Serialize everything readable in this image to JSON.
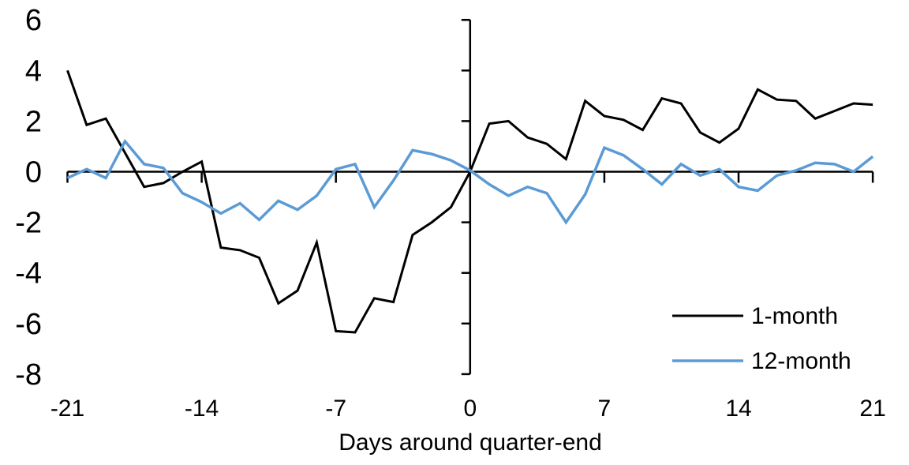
{
  "chart_data": {
    "type": "line",
    "title": "",
    "xlabel": "Days around quarter-end",
    "ylabel": "",
    "x": [
      -21,
      -20,
      -19,
      -18,
      -17,
      -16,
      -15,
      -14,
      -13,
      -12,
      -11,
      -10,
      -9,
      -8,
      -7,
      -6,
      -5,
      -4,
      -3,
      -2,
      -1,
      0,
      1,
      2,
      3,
      4,
      5,
      6,
      7,
      8,
      9,
      10,
      11,
      12,
      13,
      14,
      15,
      16,
      17,
      18,
      19,
      20,
      21
    ],
    "series": [
      {
        "name": "1-month",
        "color": "#000000",
        "values": [
          4.0,
          1.85,
          2.1,
          0.75,
          -0.6,
          -0.45,
          0.0,
          0.4,
          -3.0,
          -3.1,
          -3.4,
          -5.2,
          -4.7,
          -2.8,
          -6.3,
          -6.35,
          -5.0,
          -5.15,
          -2.5,
          -2.0,
          -1.4,
          0.0,
          1.9,
          2.0,
          1.35,
          1.1,
          0.5,
          2.8,
          2.2,
          2.05,
          1.65,
          2.9,
          2.7,
          1.55,
          1.15,
          1.7,
          3.25,
          2.85,
          2.8,
          2.1,
          2.4,
          2.7,
          2.65
        ]
      },
      {
        "name": "12-month",
        "color": "#5B9BD5",
        "values": [
          -0.25,
          0.1,
          -0.25,
          1.2,
          0.3,
          0.15,
          -0.85,
          -1.2,
          -1.65,
          -1.25,
          -1.9,
          -1.15,
          -1.5,
          -0.95,
          0.1,
          0.3,
          -1.4,
          -0.35,
          0.85,
          0.7,
          0.45,
          0.05,
          -0.5,
          -0.95,
          -0.6,
          -0.85,
          -2.0,
          -0.9,
          0.95,
          0.65,
          0.1,
          -0.5,
          0.3,
          -0.15,
          0.1,
          -0.6,
          -0.75,
          -0.15,
          0.05,
          0.35,
          0.3,
          0.0,
          0.6
        ]
      }
    ],
    "xlim": [
      -21,
      21
    ],
    "ylim": [
      -8,
      6
    ],
    "x_ticks": [
      -21,
      -14,
      -7,
      0,
      7,
      14,
      21
    ],
    "y_ticks": [
      6,
      4,
      2,
      0,
      -2,
      -4,
      -6,
      -8
    ],
    "grid": false,
    "axis_cross": {
      "vertical_axis_at_x": 0,
      "horizontal_axis_at_y": 0
    },
    "legend_position": "inside-bottom-right"
  },
  "colors": {
    "background": "#ffffff",
    "axis": "#000000",
    "text": "#000000",
    "series_1": "#000000",
    "series_2": "#5B9BD5"
  }
}
